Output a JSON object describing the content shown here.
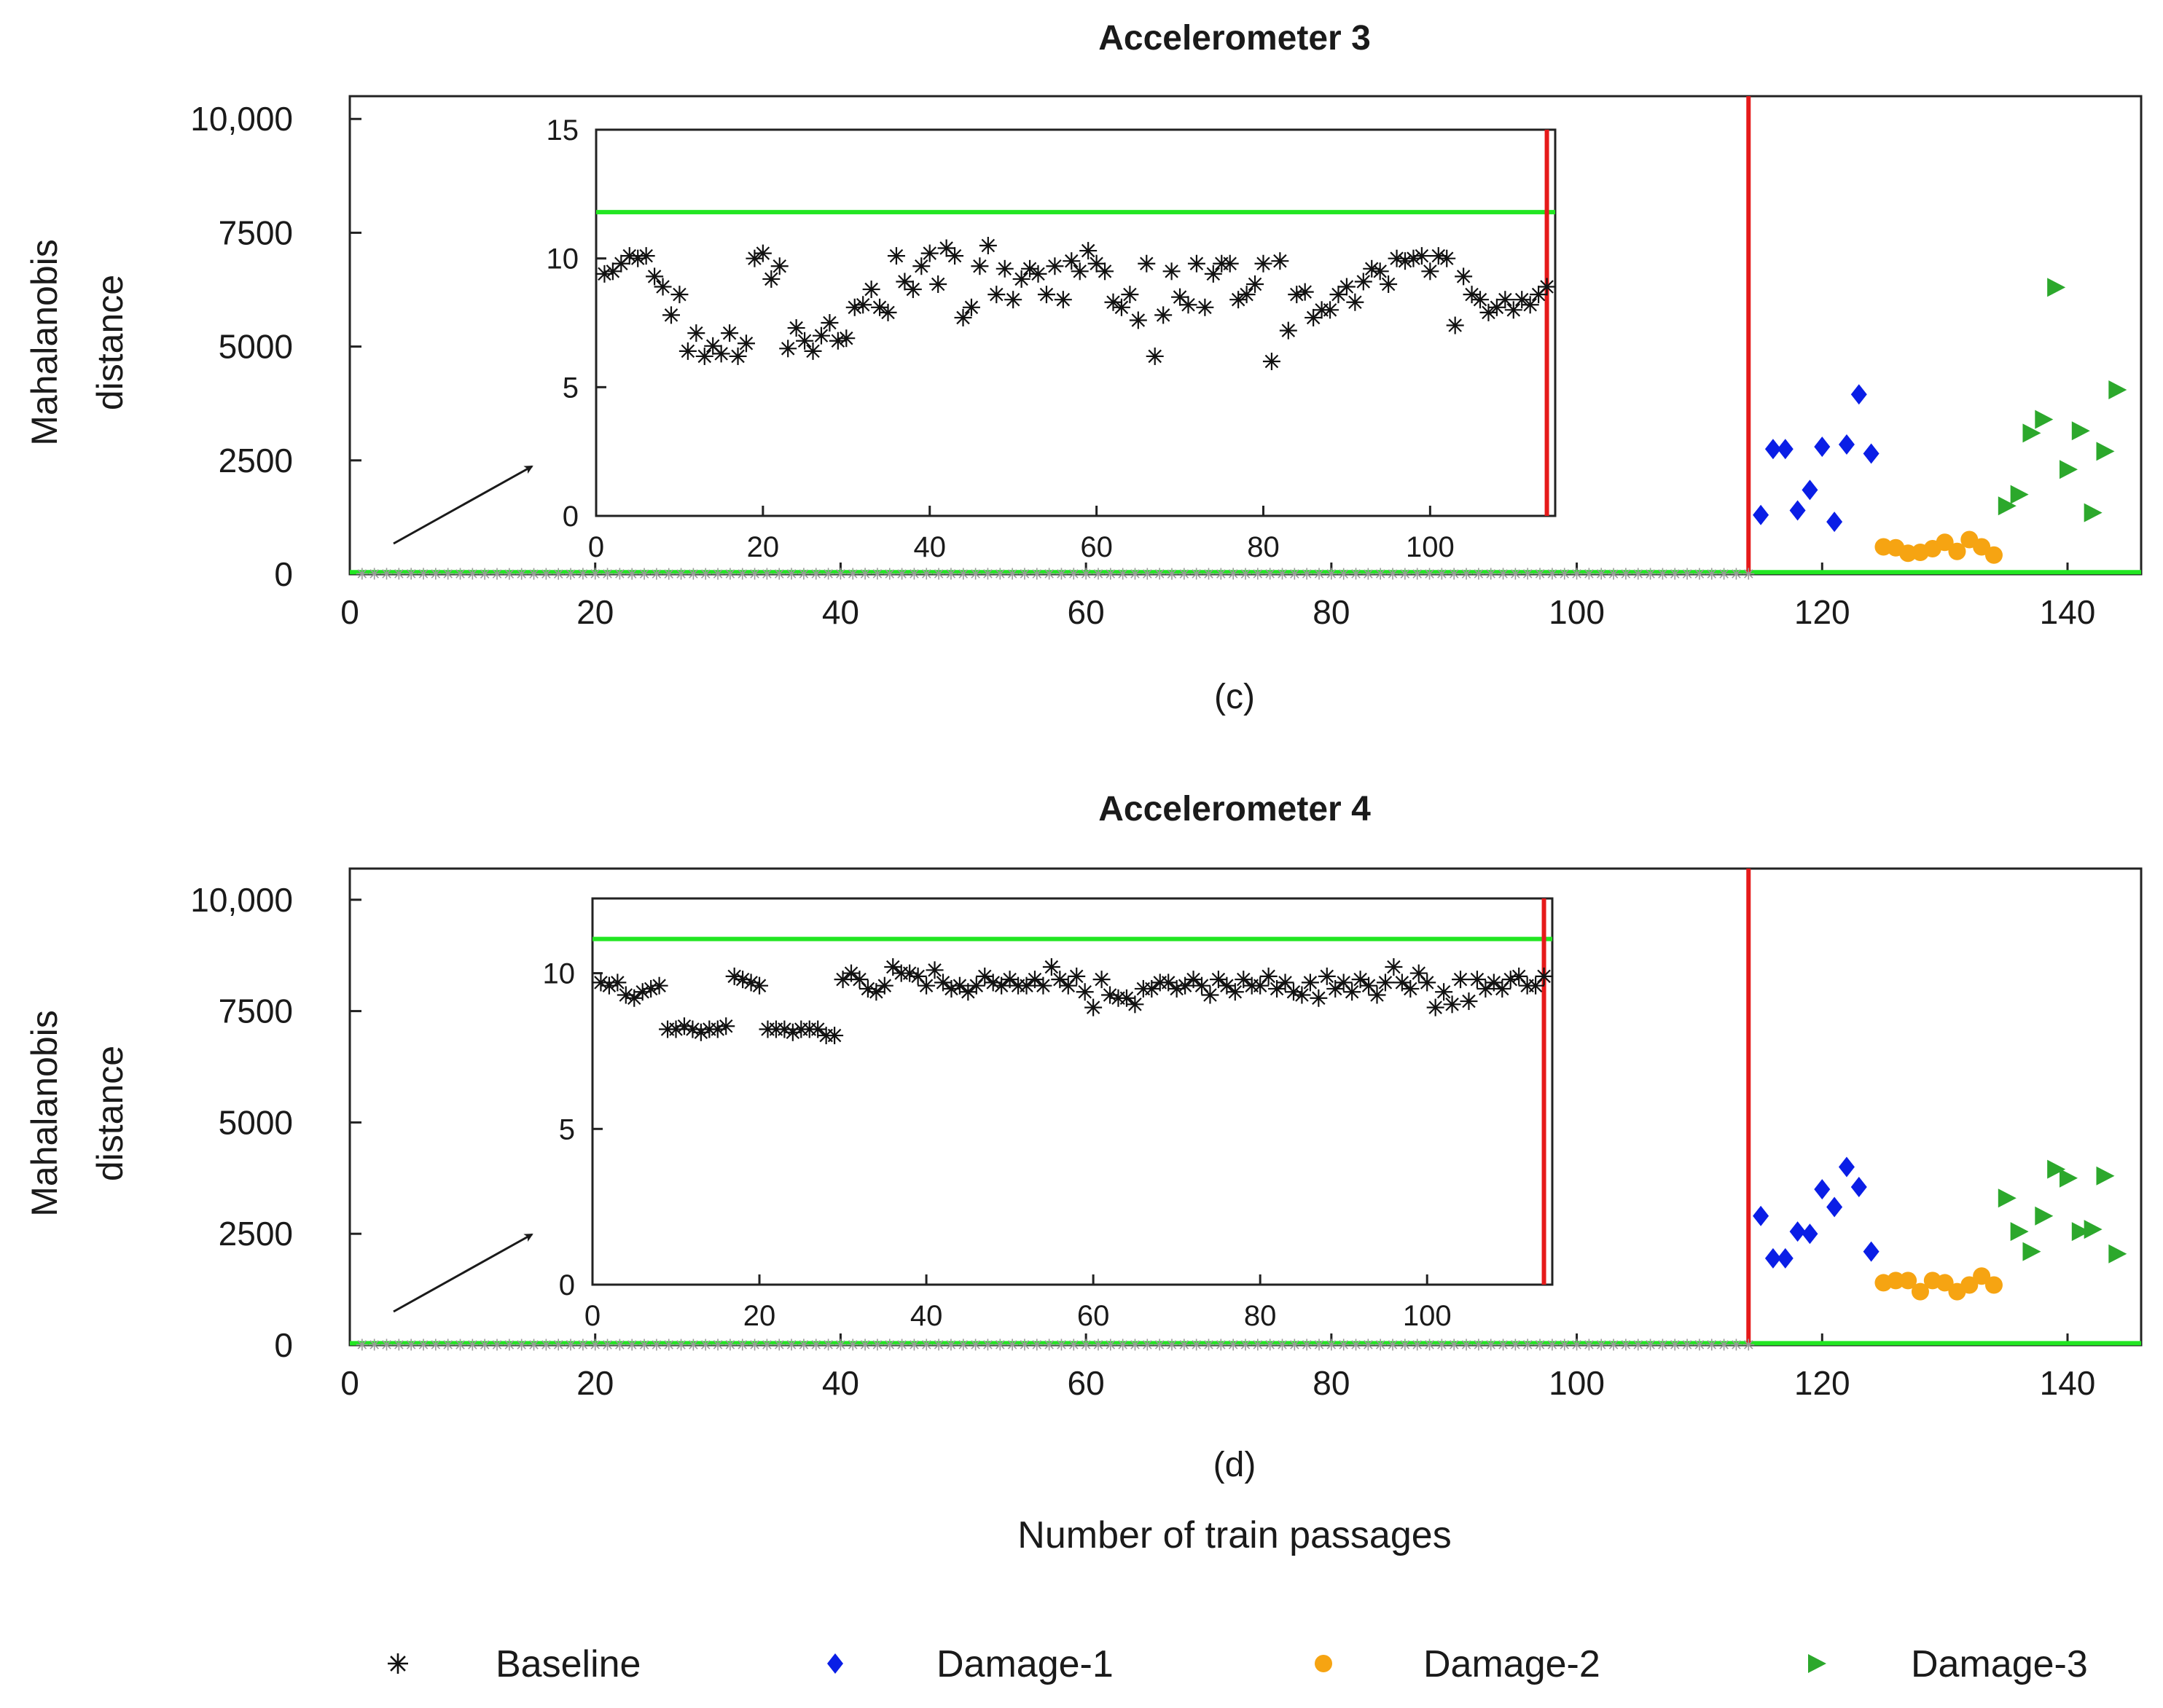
{
  "figure": {
    "xlabel": "Number of  train passages",
    "legend": [
      "Baseline",
      "Damage-1",
      "Damage-2",
      "Damage-3"
    ],
    "colors": {
      "baseline": "#111111",
      "damage1": "#0a1ee6",
      "damage2": "#f6a412",
      "damage3": "#2ca82c",
      "threshold": "#22e622",
      "separator": "#e61a1a"
    }
  },
  "chart_data": [
    {
      "type": "scatter",
      "title": "Accelerometer 3",
      "panel_label": "(c)",
      "xlabel": "Number of  train passages",
      "ylabel": "Mahalanobis distance",
      "ylabel_lines": [
        "Mahalanobis",
        "distance"
      ],
      "xlim": [
        0,
        146
      ],
      "ylim": [
        0,
        10500
      ],
      "xticks": [
        0,
        20,
        40,
        60,
        80,
        100,
        120,
        140
      ],
      "xtick_labels": [
        "0",
        "20",
        "40",
        "60",
        "80",
        "100",
        "120",
        "140"
      ],
      "yticks": [
        0,
        2500,
        5000,
        7500,
        10000
      ],
      "ytick_labels": [
        "0",
        "2500",
        "5000",
        "7500",
        "10,000"
      ],
      "threshold": 11.8,
      "separator_x": 114,
      "series": [
        {
          "name": "Baseline",
          "marker": "asterisk",
          "x": [
            1,
            2,
            3,
            4,
            5,
            6,
            7,
            8,
            9,
            10,
            11,
            12,
            13,
            14,
            15,
            16,
            17,
            18,
            19,
            20,
            21,
            22,
            23,
            24,
            25,
            26,
            27,
            28,
            29,
            30,
            31,
            32,
            33,
            34,
            35,
            36,
            37,
            38,
            39,
            40,
            41,
            42,
            43,
            44,
            45,
            46,
            47,
            48,
            49,
            50,
            51,
            52,
            53,
            54,
            55,
            56,
            57,
            58,
            59,
            60,
            61,
            62,
            63,
            64,
            65,
            66,
            67,
            68,
            69,
            70,
            71,
            72,
            73,
            74,
            75,
            76,
            77,
            78,
            79,
            80,
            81,
            82,
            83,
            84,
            85,
            86,
            87,
            88,
            89,
            90,
            91,
            92,
            93,
            94,
            95,
            96,
            97,
            98,
            99,
            100,
            101,
            102,
            103,
            104,
            105,
            106,
            107,
            108,
            109,
            110,
            111,
            112,
            113,
            114
          ],
          "y": [
            9.4,
            9.5,
            9.8,
            10.1,
            10.0,
            10.1,
            9.3,
            8.9,
            7.8,
            8.6,
            6.4,
            7.1,
            6.2,
            6.6,
            6.3,
            7.1,
            6.2,
            6.7,
            10,
            10.2,
            9.2,
            9.7,
            6.5,
            7.3,
            6.8,
            6.4,
            7.0,
            7.5,
            6.8,
            6.9,
            8.1,
            8.2,
            8.8,
            8.1,
            7.9,
            10.1,
            9.1,
            8.8,
            9.7,
            10.2,
            9.0,
            10.4,
            10.1,
            7.7,
            8.1,
            9.7,
            10.5,
            8.6,
            9.6,
            8.4,
            9.2,
            9.6,
            9.4,
            8.6,
            9.7,
            8.4,
            9.9,
            9.5,
            10.3,
            9.8,
            9.5,
            8.3,
            8.1,
            8.6,
            7.6,
            9.8,
            6.2,
            7.8,
            9.5,
            8.5,
            8.2,
            9.8,
            8.1,
            9.4,
            9.8,
            9.8,
            8.4,
            8.6,
            9.0,
            9.8,
            6.0,
            9.9,
            7.2,
            8.6,
            8.7,
            7.7,
            8.0,
            8.0,
            8.6,
            8.9,
            8.3,
            9.1,
            9.6,
            9.5,
            9.0,
            10.0,
            9.9,
            10.0,
            10.1,
            9.5,
            10.1,
            10.0,
            7.4,
            9.3,
            8.6,
            8.4,
            7.9,
            8.1,
            8.4,
            8.0,
            8.4,
            8.2,
            8.6,
            8.9
          ]
        },
        {
          "name": "Damage-1",
          "marker": "diamond",
          "x": [
            115,
            116,
            117,
            118,
            119,
            120,
            121,
            122,
            123,
            124
          ],
          "y": [
            1300,
            2750,
            2750,
            1400,
            1850,
            2800,
            1150,
            2850,
            3950,
            2650
          ]
        },
        {
          "name": "Damage-2",
          "marker": "circle",
          "x": [
            125,
            126,
            127,
            128,
            129,
            130,
            131,
            132,
            133,
            134
          ],
          "y": [
            600,
            580,
            460,
            480,
            560,
            700,
            500,
            760,
            600,
            420
          ]
        },
        {
          "name": "Damage-3",
          "marker": "triangle-right",
          "x": [
            135,
            136,
            137,
            138,
            139,
            140,
            141,
            142,
            143,
            144
          ],
          "y": [
            1500,
            1750,
            3100,
            3400,
            6300,
            2300,
            3150,
            1350,
            2700,
            4050
          ]
        }
      ],
      "inset": {
        "xlim": [
          0,
          115
        ],
        "ylim": [
          0,
          15
        ],
        "xticks": [
          0,
          20,
          40,
          60,
          80,
          100
        ],
        "xtick_labels": [
          "0",
          "20",
          "40",
          "60",
          "80",
          "100"
        ],
        "yticks": [
          0,
          5,
          10,
          15
        ],
        "ytick_labels": [
          "0",
          "5",
          "10",
          "15"
        ],
        "threshold": 11.8,
        "separator_x": 114
      }
    },
    {
      "type": "scatter",
      "title": "Accelerometer 4",
      "panel_label": "(d)",
      "xlabel": "Number of  train passages",
      "ylabel": "Mahalanobis distance",
      "ylabel_lines": [
        "Mahalanobis",
        "distance"
      ],
      "xlim": [
        0,
        146
      ],
      "ylim": [
        0,
        10700
      ],
      "xticks": [
        0,
        20,
        40,
        60,
        80,
        100,
        120,
        140
      ],
      "xtick_labels": [
        "0",
        "20",
        "40",
        "60",
        "80",
        "100",
        "120",
        "140"
      ],
      "yticks": [
        0,
        2500,
        5000,
        7500,
        10000
      ],
      "ytick_labels": [
        "0",
        "2500",
        "5000",
        "7500",
        "10,000"
      ],
      "threshold": 11.1,
      "separator_x": 114,
      "series": [
        {
          "name": "Baseline",
          "marker": "asterisk",
          "x": [
            1,
            2,
            3,
            4,
            5,
            6,
            7,
            8,
            9,
            10,
            11,
            12,
            13,
            14,
            15,
            16,
            17,
            18,
            19,
            20,
            21,
            22,
            23,
            24,
            25,
            26,
            27,
            28,
            29,
            30,
            31,
            32,
            33,
            34,
            35,
            36,
            37,
            38,
            39,
            40,
            41,
            42,
            43,
            44,
            45,
            46,
            47,
            48,
            49,
            50,
            51,
            52,
            53,
            54,
            55,
            56,
            57,
            58,
            59,
            60,
            61,
            62,
            63,
            64,
            65,
            66,
            67,
            68,
            69,
            70,
            71,
            72,
            73,
            74,
            75,
            76,
            77,
            78,
            79,
            80,
            81,
            82,
            83,
            84,
            85,
            86,
            87,
            88,
            89,
            90,
            91,
            92,
            93,
            94,
            95,
            96,
            97,
            98,
            99,
            100,
            101,
            102,
            103,
            104,
            105,
            106,
            107,
            108,
            109,
            110,
            111,
            112,
            113,
            114
          ],
          "y": [
            9.7,
            9.6,
            9.7,
            9.3,
            9.2,
            9.4,
            9.5,
            9.6,
            8.2,
            8.2,
            8.3,
            8.2,
            8.1,
            8.2,
            8.2,
            8.3,
            9.9,
            9.8,
            9.7,
            9.6,
            8.2,
            8.2,
            8.2,
            8.1,
            8.2,
            8.2,
            8.2,
            8.0,
            8.0,
            9.8,
            10.0,
            9.8,
            9.5,
            9.4,
            9.6,
            10.2,
            10.0,
            10.0,
            9.9,
            9.6,
            10.1,
            9.7,
            9.5,
            9.6,
            9.4,
            9.6,
            9.9,
            9.7,
            9.6,
            9.8,
            9.6,
            9.6,
            9.8,
            9.6,
            10.2,
            9.8,
            9.6,
            9.9,
            9.4,
            8.9,
            9.8,
            9.3,
            9.2,
            9.2,
            9.0,
            9.5,
            9.5,
            9.7,
            9.7,
            9.5,
            9.6,
            9.8,
            9.6,
            9.3,
            9.8,
            9.6,
            9.4,
            9.8,
            9.6,
            9.6,
            9.9,
            9.5,
            9.7,
            9.4,
            9.3,
            9.7,
            9.2,
            9.9,
            9.5,
            9.7,
            9.4,
            9.8,
            9.6,
            9.3,
            9.7,
            10.2,
            9.7,
            9.5,
            10.0,
            9.7,
            8.9,
            9.4,
            9.0,
            9.8,
            9.1,
            9.8,
            9.5,
            9.7,
            9.5,
            9.8,
            9.9,
            9.6,
            9.6,
            9.9
          ]
        },
        {
          "name": "Damage-1",
          "marker": "diamond",
          "x": [
            115,
            116,
            117,
            118,
            119,
            120,
            121,
            122,
            123,
            124
          ],
          "y": [
            2900,
            1950,
            1950,
            2550,
            2500,
            3500,
            3100,
            4000,
            3550,
            2100
          ]
        },
        {
          "name": "Damage-2",
          "marker": "circle",
          "x": [
            125,
            126,
            127,
            128,
            129,
            130,
            131,
            132,
            133,
            134
          ],
          "y": [
            1400,
            1450,
            1450,
            1200,
            1450,
            1400,
            1200,
            1350,
            1550,
            1350
          ]
        },
        {
          "name": "Damage-3",
          "marker": "triangle-right",
          "x": [
            135,
            136,
            137,
            138,
            139,
            140,
            141,
            142,
            143,
            144
          ],
          "y": [
            3300,
            2550,
            2100,
            2900,
            3950,
            3750,
            2550,
            2600,
            3800,
            2050
          ]
        }
      ],
      "inset": {
        "xlim": [
          0,
          115
        ],
        "ylim": [
          0,
          12.4
        ],
        "xticks": [
          0,
          20,
          40,
          60,
          80,
          100
        ],
        "xtick_labels": [
          "0",
          "20",
          "40",
          "60",
          "80",
          "100"
        ],
        "yticks": [
          0,
          5,
          10
        ],
        "ytick_labels": [
          "0",
          "5",
          "10"
        ],
        "threshold": 11.1,
        "separator_x": 114
      }
    }
  ]
}
